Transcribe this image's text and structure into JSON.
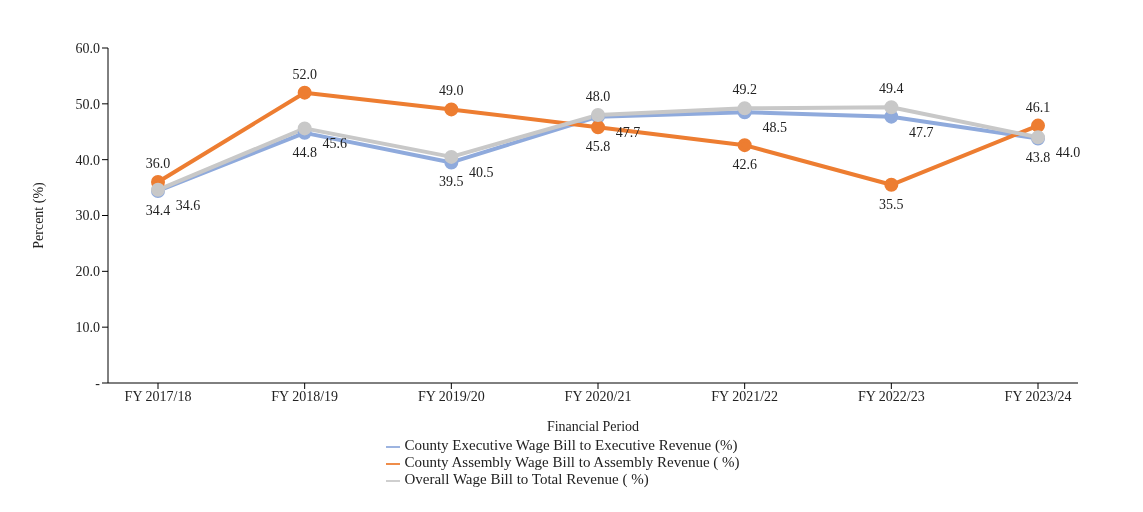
{
  "chart_data": {
    "type": "line",
    "xlabel": "Financial Period",
    "ylabel": "Percent  (%)",
    "categories": [
      "FY 2017/18",
      "FY 2018/19",
      "FY 2019/20",
      "FY 2020/21",
      "FY 2021/22",
      "FY 2022/23",
      "FY 2023/24"
    ],
    "series": [
      {
        "name": "County Executive Wage Bill to  Executive Revenue (%)",
        "color": "#8faadc",
        "values": [
          34.4,
          44.8,
          39.5,
          47.7,
          48.5,
          47.7,
          43.8
        ],
        "value_labels": [
          "34.4",
          "44.8",
          "39.5",
          "47.7",
          "48.5",
          "47.7",
          "43.8"
        ]
      },
      {
        "name": "County Assembly Wage Bill to Assembly Revenue ( %)",
        "color": "#ed7d31",
        "values": [
          36.0,
          52.0,
          49.0,
          45.8,
          42.6,
          35.5,
          46.1
        ],
        "value_labels": [
          "36.0",
          "52.0",
          "49.0",
          "45.8",
          "42.6",
          "35.5",
          "46.1"
        ]
      },
      {
        "name": "Overall  Wage Bill to Total Revenue ( %)",
        "color": "#c8c8c8",
        "values": [
          34.6,
          45.6,
          40.5,
          48.0,
          49.2,
          49.4,
          44.0
        ],
        "value_labels": [
          "34.6",
          "45.6",
          "40.5",
          "48.0",
          "49.2",
          "49.4",
          "44.0"
        ]
      }
    ],
    "ylim": [
      0,
      60
    ],
    "yticks": [
      {
        "value": 0,
        "label": "-"
      },
      {
        "value": 10,
        "label": "10.0"
      },
      {
        "value": 20,
        "label": "20.0"
      },
      {
        "value": 30,
        "label": "30.0"
      },
      {
        "value": 40,
        "label": "40.0"
      },
      {
        "value": 50,
        "label": "50.0"
      },
      {
        "value": 60,
        "label": "60.0"
      }
    ],
    "grid": false,
    "legend": "bottom",
    "marker": "circle",
    "line_style": "solid"
  }
}
